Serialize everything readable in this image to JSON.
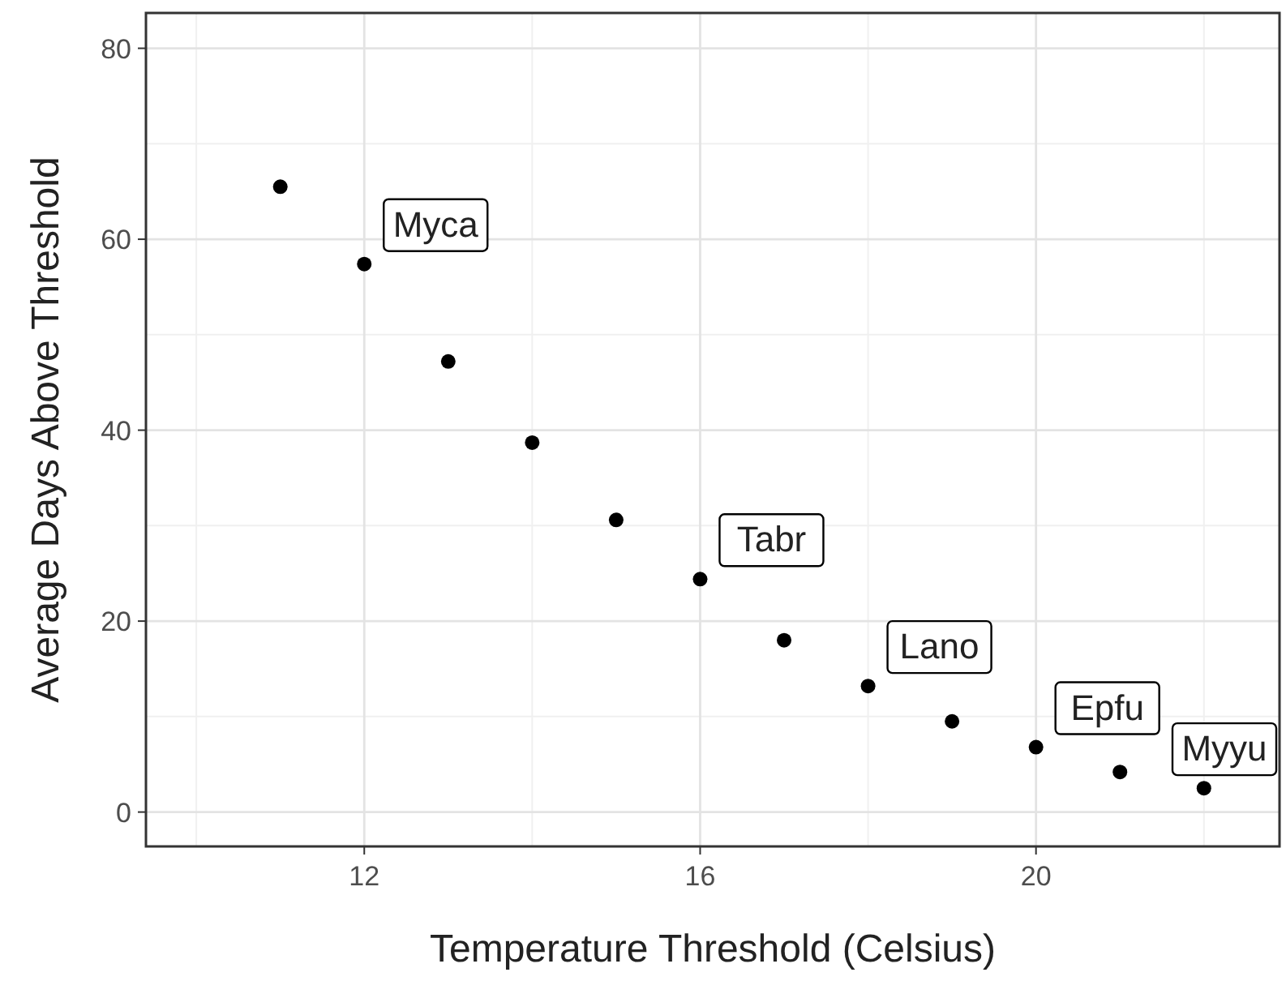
{
  "chart_data": {
    "type": "scatter",
    "xlabel": "Temperature Threshold (Celsius)",
    "ylabel": "Average Days Above Threshold",
    "x": [
      11,
      12,
      13,
      14,
      15,
      16,
      17,
      18,
      19,
      20,
      21,
      22
    ],
    "values": [
      65.5,
      57.4,
      47.2,
      38.7,
      30.6,
      24.4,
      18.0,
      13.2,
      9.5,
      6.8,
      4.2,
      2.5
    ],
    "color": "#000000",
    "marker": "circle",
    "xlim": [
      9.4,
      22.9
    ],
    "ylim": [
      -3.6,
      83.7
    ],
    "xticks": [
      12,
      16,
      20
    ],
    "yticks": [
      0,
      20,
      40,
      60,
      80
    ],
    "grid": true,
    "annotations": [
      {
        "text": "Myca",
        "x": 12,
        "y": 57.4
      },
      {
        "text": "Tabr",
        "x": 16,
        "y": 24.4
      },
      {
        "text": "Lano",
        "x": 18,
        "y": 13.2
      },
      {
        "text": "Epfu",
        "x": 20,
        "y": 6.8
      },
      {
        "text": "Myyu",
        "x": 22,
        "y": 2.5
      }
    ]
  }
}
